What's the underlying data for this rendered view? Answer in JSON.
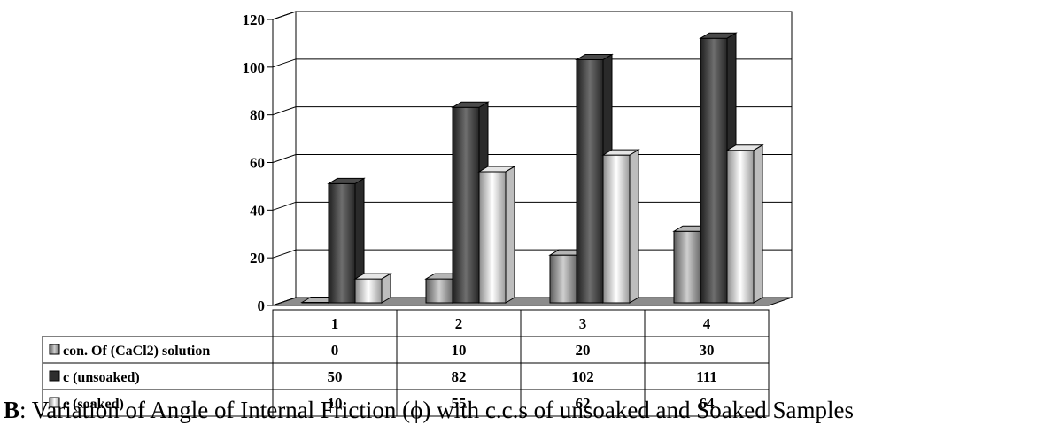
{
  "chart_data": {
    "type": "bar",
    "categories": [
      "1",
      "2",
      "3",
      "4"
    ],
    "series": [
      {
        "name": "con. Of (CaCl2) solution",
        "values": [
          0,
          10,
          20,
          30
        ]
      },
      {
        "name": "c (unsoaked)",
        "values": [
          50,
          82,
          102,
          111
        ]
      },
      {
        "name": "c (soaked)",
        "values": [
          10,
          55,
          62,
          64
        ]
      }
    ],
    "ylim": [
      0,
      120
    ],
    "yticks": [
      0,
      20,
      40,
      60,
      80,
      100,
      120
    ],
    "grid": true,
    "legend": "data-table-left",
    "data_table": true,
    "style": "3d-clustered-column"
  },
  "caption": {
    "label": "B",
    "text": ": Variation of Angle of Internal Friction  (ϕ) with c.c.s of unsoaked and Soaked Samples"
  }
}
